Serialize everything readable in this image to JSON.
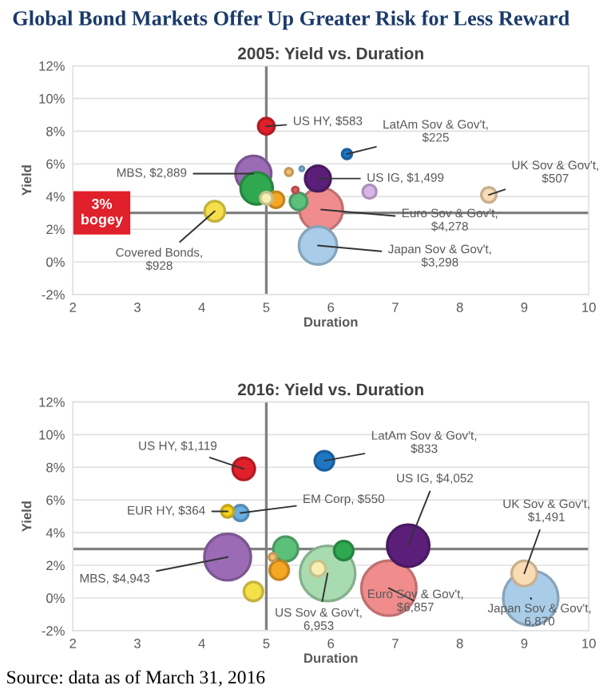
{
  "chart_data": [
    {
      "type": "bubble",
      "title": "2005: Yield vs. Duration",
      "xlabel": "Duration",
      "ylabel": "Yield",
      "x": [
        5.85,
        5.8,
        4.8,
        4.85,
        5.8,
        4.2,
        5.5,
        5.15,
        5.0,
        8.45,
        6.6,
        5.0,
        5.35,
        6.25,
        5.45,
        5.55
      ],
      "values": [
        3.2,
        1.0,
        5.4,
        4.5,
        5.1,
        3.1,
        3.7,
        3.8,
        3.9,
        4.1,
        4.3,
        8.3,
        5.5,
        6.6,
        4.4,
        5.7
      ],
      "sizes": [
        1,
        0.77,
        0.68,
        0.55,
        0.35,
        0.22,
        0.16,
        0.14,
        0.08,
        0.12,
        0.1,
        0.14,
        0.03,
        0.05,
        0.02,
        0.01
      ],
      "colors": [
        "#f08c8c",
        "#a9cde8",
        "#9b6bb5",
        "#2fa84f",
        "#5b1f7a",
        "#f5e04a",
        "#5cbf7a",
        "#f5a623",
        "#f7efb0",
        "#f9dcb4",
        "#d8b5e8",
        "#e0202a",
        "#f5c070",
        "#1f77c4",
        "#e86060",
        "#8ab8e0"
      ],
      "xlim": [
        2,
        10
      ],
      "ylim": [
        -2,
        12
      ],
      "xticks": [
        2,
        3,
        4,
        5,
        6,
        7,
        8,
        9,
        10
      ],
      "yticks": [
        {
          "value": -2,
          "label": "-2%"
        },
        {
          "value": 0,
          "label": "0%"
        },
        {
          "value": 2,
          "label": "2%"
        },
        {
          "value": 4,
          "label": "4%"
        },
        {
          "value": 6,
          "label": "6%"
        },
        {
          "value": 8,
          "label": "8%"
        },
        {
          "value": 10,
          "label": "10%"
        },
        {
          "value": 12,
          "label": "12%"
        }
      ],
      "grid": "y",
      "ref_lines": [
        {
          "axis": "x",
          "value": 5
        },
        {
          "axis": "y",
          "value": 3,
          "label": "3%\nbogey"
        }
      ],
      "annotations": [
        "Global Bond Markets Offer Up Greater Risk for Less Reward",
        {
          "text": "US HY, $583",
          "x": 5.0,
          "y": 8.3
        },
        {
          "text": "LatAm Sov & Gov't,\n$225",
          "x": 6.25,
          "y": 6.6
        },
        {
          "text": "UK Sov & Gov't,\n$507",
          "x": 8.45,
          "y": 4.1
        },
        {
          "text": "US IG, $1,499",
          "x": 5.8,
          "y": 5.1
        },
        {
          "text": "MBS, $2,889",
          "x": 4.8,
          "y": 5.4
        },
        {
          "text": "Euro Sov & Gov't,\n$4,278",
          "x": 5.85,
          "y": 3.2
        },
        {
          "text": "Japan Sov & Gov't,\n$3,298",
          "x": 5.8,
          "y": 1.0
        },
        {
          "text": "Covered Bonds,\n$928",
          "x": 4.2,
          "y": 3.1
        }
      ]
    },
    {
      "type": "bubble",
      "title": "2016: Yield vs. Duration",
      "xlabel": "Duration",
      "ylabel": "Yield",
      "x": [
        5.95,
        9.1,
        6.9,
        4.4,
        7.2,
        9.0,
        5.3,
        4.65,
        6.2,
        5.2,
        4.8,
        5.9,
        5.8,
        4.6,
        4.4,
        5.1
      ],
      "values": [
        1.5,
        0.0,
        0.6,
        2.5,
        3.2,
        1.5,
        3.0,
        7.9,
        2.9,
        1.7,
        0.4,
        8.4,
        1.8,
        5.2,
        5.3,
        2.5
      ],
      "sizes": [
        1,
        0.99,
        0.99,
        0.71,
        0.58,
        0.21,
        0.2,
        0.16,
        0.12,
        0.12,
        0.12,
        0.12,
        0.08,
        0.08,
        0.05,
        0.02
      ],
      "colors": [
        "#a8dcb0",
        "#a9cde8",
        "#f08c8c",
        "#9b6bb5",
        "#5b1f7a",
        "#f9dcb4",
        "#5cbf7a",
        "#e0202a",
        "#2fa84f",
        "#f5a623",
        "#f5e04a",
        "#1f77c4",
        "#f7efb0",
        "#6aaee0",
        "#f5d020",
        "#f5c070"
      ],
      "xlim": [
        2,
        10
      ],
      "ylim": [
        -2,
        12
      ],
      "xticks": [
        2,
        3,
        4,
        5,
        6,
        7,
        8,
        9,
        10
      ],
      "yticks": [
        {
          "value": -2,
          "label": "-2%"
        },
        {
          "value": 0,
          "label": "0%"
        },
        {
          "value": 2,
          "label": "2%"
        },
        {
          "value": 4,
          "label": "4%"
        },
        {
          "value": 6,
          "label": "6%"
        },
        {
          "value": 8,
          "label": "8%"
        },
        {
          "value": 10,
          "label": "10%"
        },
        {
          "value": 12,
          "label": "12%"
        }
      ],
      "grid": "y",
      "ref_lines": [
        {
          "axis": "x",
          "value": 5
        },
        {
          "axis": "y",
          "value": 3
        }
      ],
      "annotations": [
        "Source: data as of March 31, 2016",
        {
          "text": "US HY, $1,119",
          "x": 4.65,
          "y": 7.9
        },
        {
          "text": "LatAm Sov & Gov't,\n$833",
          "x": 5.9,
          "y": 8.4
        },
        {
          "text": "EUR HY, $364",
          "x": 4.4,
          "y": 5.3
        },
        {
          "text": "EM Corp, $550",
          "x": 4.6,
          "y": 5.2
        },
        {
          "text": "US IG, $4,052",
          "x": 7.2,
          "y": 3.2
        },
        {
          "text": "UK Sov & Gov't,\n$1,491",
          "x": 9.0,
          "y": 1.5
        },
        {
          "text": "MBS, $4,943",
          "x": 4.4,
          "y": 2.5
        },
        {
          "text": "US Sov & Gov't,\n6,953",
          "x": 5.95,
          "y": 1.5
        },
        {
          "text": "Euro Sov & Gov't,\n$6,857",
          "x": 6.9,
          "y": 0.6
        },
        {
          "text": "Japan Sov & Gov't,\n6,870",
          "x": 9.1,
          "y": 0.0
        }
      ]
    }
  ]
}
